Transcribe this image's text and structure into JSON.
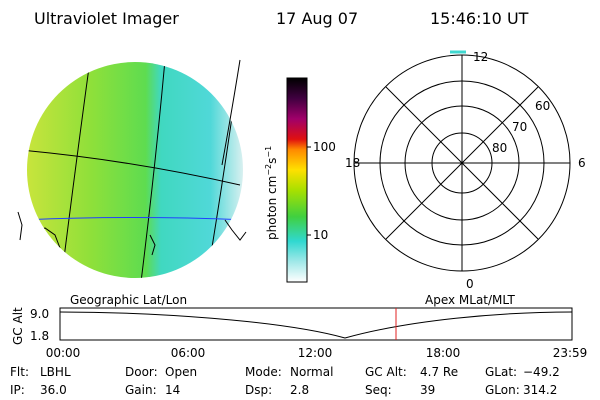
{
  "header": {
    "title": "Ultraviolet Imager",
    "date": "17 Aug 07",
    "time": "15:46:10 UT"
  },
  "colorbar": {
    "label": [
      "photon cm",
      "−2",
      "s",
      "−1"
    ],
    "ticks": [
      "100",
      "10"
    ]
  },
  "polar": {
    "mlt": [
      "12",
      "6",
      "0",
      "18"
    ],
    "lat": [
      "80",
      "70",
      "60"
    ]
  },
  "captions": {
    "left": "Geographic Lat/Lon",
    "right": "Apex MLat/MLT"
  },
  "altitude_plot": {
    "ylabel": "GC Alt",
    "yticks": [
      "9.0",
      "1.8"
    ],
    "xticks": [
      "00:00",
      "06:00",
      "12:00",
      "18:00",
      "23:59"
    ]
  },
  "info": [
    [
      {
        "label": "Flt:",
        "value": "LBHL"
      },
      {
        "label": "Door:",
        "value": "Open"
      },
      {
        "label": "Mode:",
        "value": "Normal"
      },
      {
        "label": "GC Alt:",
        "value": "4.7 Re"
      },
      {
        "label": "GLat:",
        "value": "−49.2"
      }
    ],
    [
      {
        "label": "IP:",
        "value": "36.0"
      },
      {
        "label": "Gain:",
        "value": "14"
      },
      {
        "label": "Dsp:",
        "value": "2.8"
      },
      {
        "label": "Seq:",
        "value": "39"
      },
      {
        "label": "GLon:",
        "value": "314.2"
      }
    ]
  ]
}
